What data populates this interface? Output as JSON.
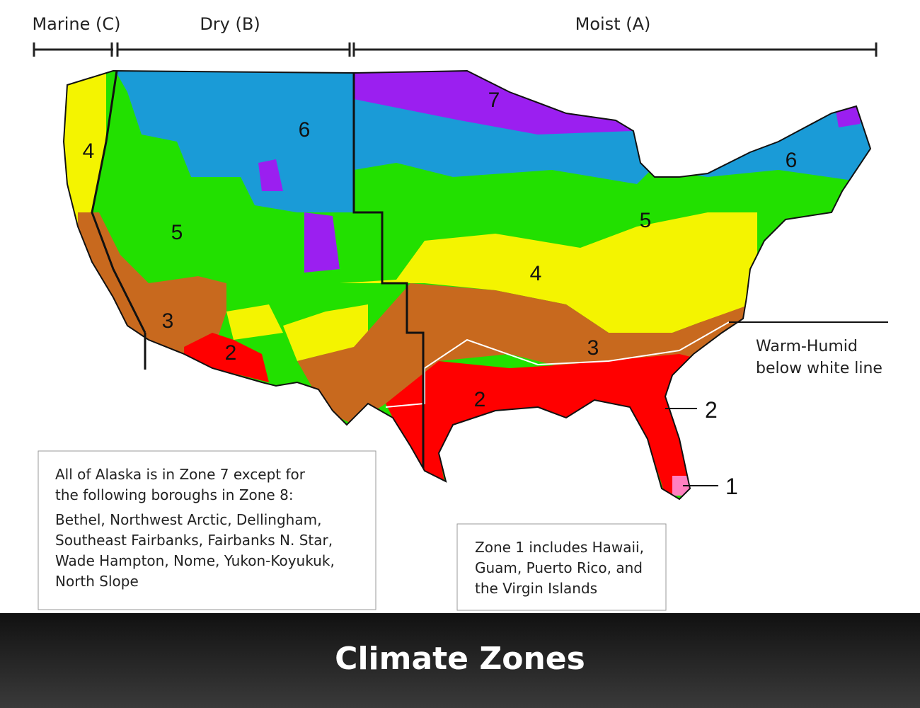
{
  "header": {
    "regions": [
      "Marine (C)",
      "Dry (B)",
      "Moist (A)"
    ]
  },
  "map": {
    "zone_labels": [
      "7",
      "6",
      "6",
      "4",
      "5",
      "5",
      "4",
      "3",
      "3",
      "2",
      "2"
    ]
  },
  "callouts": {
    "warm_humid": [
      "Warm-Humid",
      "below white line"
    ],
    "zone2": "2",
    "zone1": "1"
  },
  "notes": {
    "alaska": {
      "intro": [
        "All of Alaska is in Zone 7 except for",
        "the following boroughs in Zone 8:"
      ],
      "boroughs": [
        "Bethel, Northwest Arctic, Dellingham,",
        "Southeast Fairbanks, Fairbanks N. Star,",
        "Wade Hampton, Nome, Yukon-Koyukuk,",
        "North Slope"
      ]
    },
    "zone1": [
      "Zone 1 includes Hawaii,",
      "Guam, Puerto Rico, and",
      "the Virgin Islands"
    ]
  },
  "footer": {
    "title": "Climate Zones"
  }
}
